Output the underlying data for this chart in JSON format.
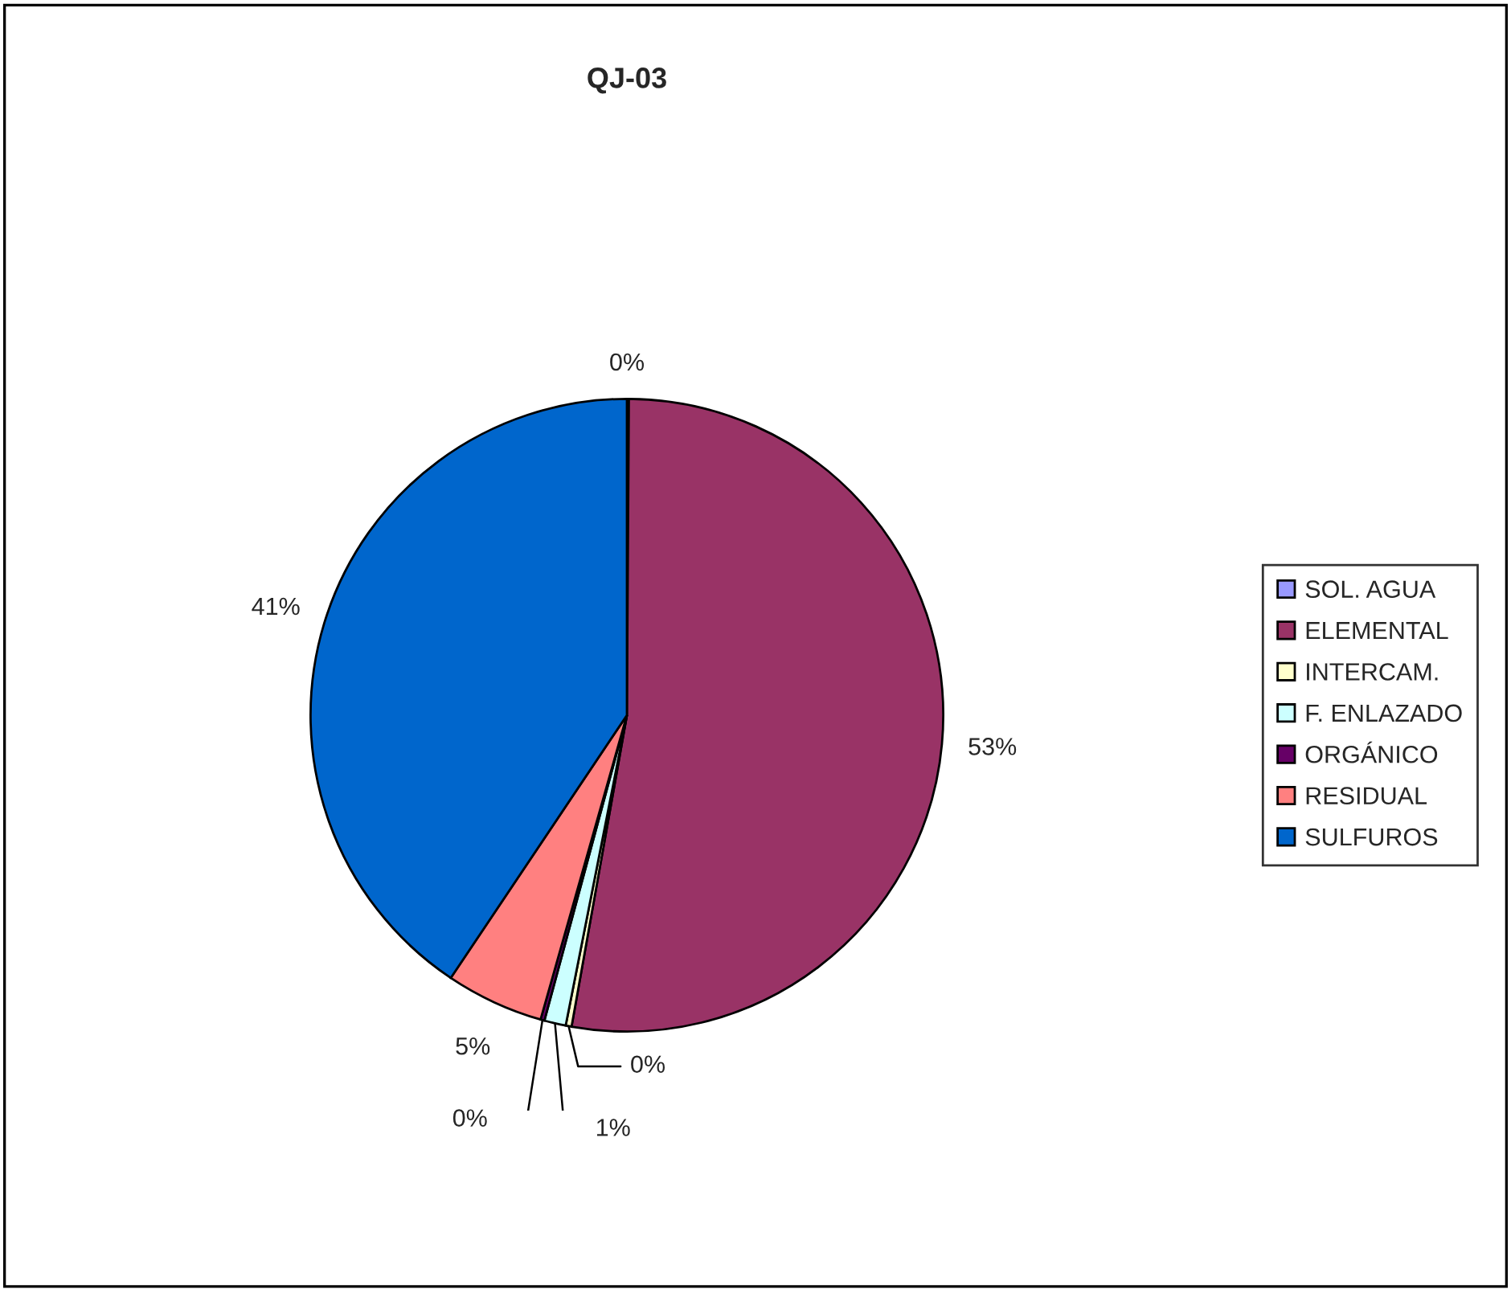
{
  "chart_data": {
    "type": "pie",
    "title": "QJ-03",
    "categories": [
      "SOL. AGUA",
      "ELEMENTAL",
      "INTERCAM.",
      "F. ENLAZADO",
      "ORGÁNICO",
      "RESIDUAL",
      "SULFUROS"
    ],
    "values": [
      0.1,
      52.7,
      0.3,
      1.1,
      0.2,
      5.0,
      40.6
    ],
    "value_labels": [
      "0%",
      "53%",
      "0%",
      "1%",
      "0%",
      "5%",
      "41%"
    ],
    "colors": [
      "#9999ff",
      "#993366",
      "#ffffcc",
      "#ccffff",
      "#660066",
      "#ff8080",
      "#0066cc"
    ],
    "legend": "right"
  }
}
